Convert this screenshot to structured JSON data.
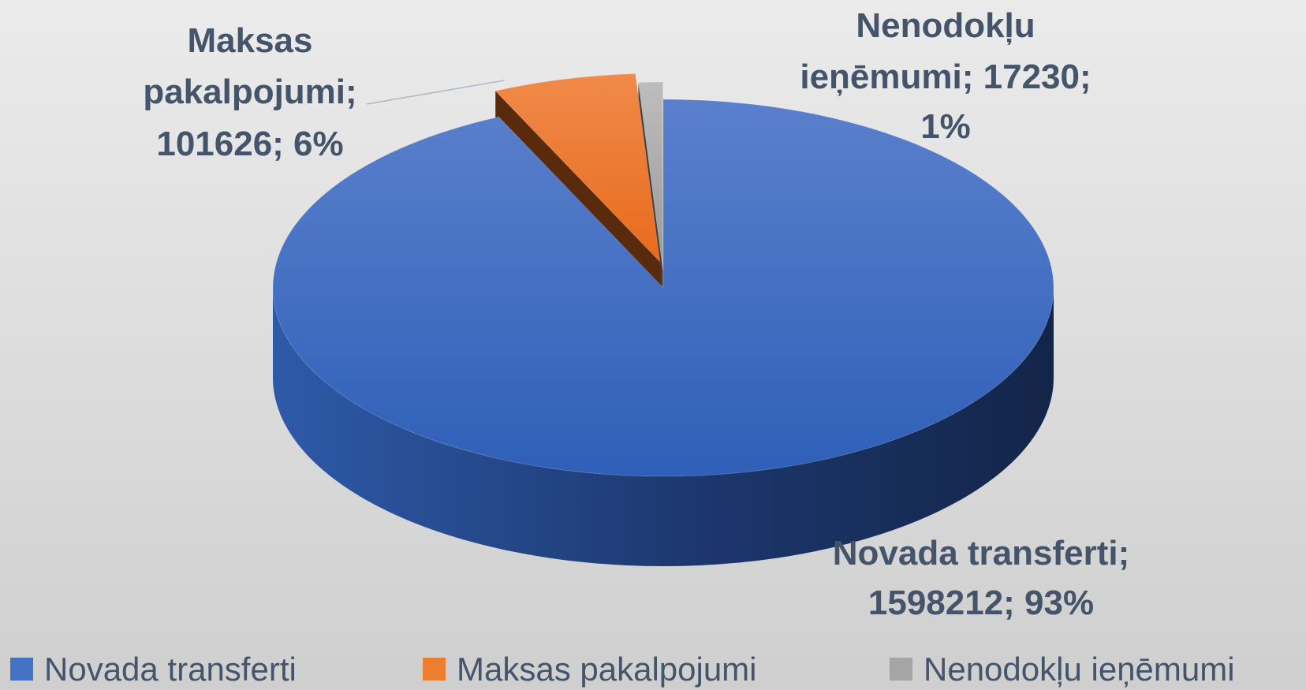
{
  "chart_data": {
    "type": "pie3d",
    "categories": [
      "Novada transferti",
      "Maksas pakalpojumi",
      "Nenodokļu ieņēmumi"
    ],
    "values": [
      1598212,
      101626,
      17230
    ],
    "value_labels": [
      [
        "Novada transferti;",
        "1598212; 93%"
      ],
      [
        "Maksas",
        "pakalpojumi;",
        "101626; 6%"
      ],
      [
        "Nenodokļu",
        "ieņēmumi; 17230;",
        "1%"
      ]
    ],
    "colors": [
      "#4472c4",
      "#ed7d31",
      "#a5a5a5"
    ],
    "legend": "bottom"
  }
}
